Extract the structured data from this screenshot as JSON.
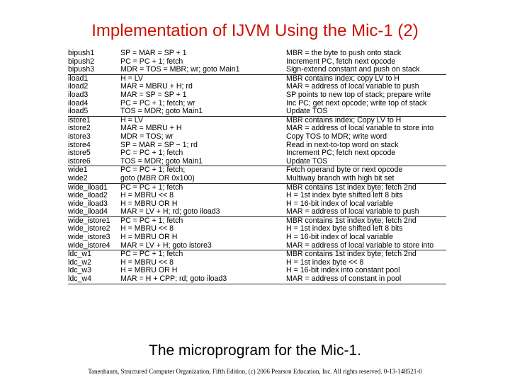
{
  "title": "Implementation of IJVM Using the Mic-1 (2)",
  "groups": [
    {
      "rows": [
        [
          "bipush1",
          "SP = MAR = SP + 1",
          "MBR = the byte to push onto stack"
        ],
        [
          "bipush2",
          "PC = PC + 1; fetch",
          "Increment PC, fetch next opcode"
        ],
        [
          "bipush3",
          "MDR = TOS = MBR; wr; goto Main1",
          "Sign-extend constant and push on stack"
        ]
      ]
    },
    {
      "rows": [
        [
          "iload1",
          "H = LV",
          "MBR contains index; copy LV to H"
        ],
        [
          "iload2",
          "MAR = MBRU + H; rd",
          "MAR = address of local variable to push"
        ],
        [
          "iload3",
          "MAR = SP = SP + 1",
          "SP points to new top of stack; prepare write"
        ],
        [
          "iload4",
          "PC = PC + 1; fetch; wr",
          "Inc PC; get next opcode; write top of stack"
        ],
        [
          "iload5",
          "TOS = MDR; goto Main1",
          "Update TOS"
        ]
      ]
    },
    {
      "rows": [
        [
          "istore1",
          "H = LV",
          "MBR contains index; Copy LV to H"
        ],
        [
          "istore2",
          "MAR = MBRU + H",
          "MAR = address of local variable to store into"
        ],
        [
          "istore3",
          "MDR = TOS; wr",
          "Copy TOS to MDR; write word"
        ],
        [
          "istore4",
          "SP = MAR = SP − 1; rd",
          "Read in next-to-top word on stack"
        ],
        [
          "istore5",
          "PC = PC + 1; fetch",
          "Increment PC; fetch next opcode"
        ],
        [
          "istore6",
          "TOS = MDR; goto Main1",
          "Update TOS"
        ]
      ]
    },
    {
      "rows": [
        [
          "wide1",
          "PC = PC + 1; fetch;",
          "Fetch operand byte or next opcode"
        ],
        [
          "wide2",
          "goto (MBR OR 0x100)",
          "Multiway branch with high bit set"
        ]
      ]
    },
    {
      "rows": [
        [
          "wide_iload1",
          "PC = PC + 1; fetch",
          "MBR contains 1st index byte; fetch 2nd"
        ],
        [
          "wide_iload2",
          "H = MBRU << 8",
          "H = 1st index byte shifted left 8 bits"
        ],
        [
          "wide_iload3",
          "H = MBRU OR H",
          "H = 16-bit index of local variable"
        ],
        [
          "wide_iload4",
          "MAR = LV + H; rd; goto iload3",
          "MAR = address of local variable to push"
        ]
      ]
    },
    {
      "rows": [
        [
          "wide_istore1",
          "PC = PC + 1; fetch",
          "MBR contains 1st index byte; fetch 2nd"
        ],
        [
          "wide_istore2",
          "H = MBRU << 8",
          "H = 1st index byte shifted left 8 bits"
        ],
        [
          "wide_istore3",
          "H = MBRU OR H",
          "H = 16-bit index of local variable"
        ],
        [
          "wide_istore4",
          "MAR = LV + H; goto istore3",
          "MAR = address of local variable to store into"
        ]
      ]
    },
    {
      "rows": [
        [
          "ldc_w1",
          "PC = PC + 1; fetch",
          "MBR contains 1st index byte; fetch 2nd"
        ],
        [
          "ldc_w2",
          "H = MBRU << 8",
          "H = 1st index byte << 8"
        ],
        [
          "ldc_w3",
          "H = MBRU OR H",
          "H = 16-bit index into constant pool"
        ],
        [
          "ldc_w4",
          "MAR = H + CPP; rd; goto iload3",
          "MAR = address of constant in pool"
        ]
      ]
    }
  ],
  "caption": "The microprogram for the Mic-1.",
  "footer": "Tanenbaum, Structured Computer Organization, Fifth Edition, (c) 2006 Pearson Education, Inc. All rights reserved. 0-13-148521-0"
}
